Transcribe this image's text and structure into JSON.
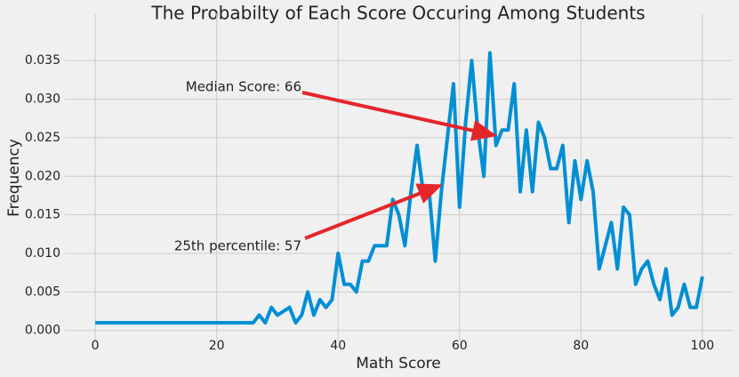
{
  "chart_data": {
    "type": "line",
    "title": "The Probabilty of Each Score Occuring Among Students",
    "x_label": "Math Score",
    "y_label": "Frequency",
    "annotations": [
      "Median Score: 66",
      "25th percentile: 57"
    ],
    "x": [
      0,
      1,
      2,
      3,
      4,
      5,
      6,
      7,
      8,
      9,
      10,
      11,
      12,
      13,
      14,
      15,
      16,
      17,
      18,
      19,
      20,
      21,
      22,
      23,
      24,
      25,
      26,
      27,
      28,
      29,
      30,
      31,
      32,
      33,
      34,
      35,
      36,
      37,
      38,
      39,
      40,
      41,
      42,
      43,
      44,
      45,
      46,
      47,
      48,
      49,
      50,
      51,
      52,
      53,
      54,
      55,
      56,
      57,
      58,
      59,
      60,
      61,
      62,
      63,
      64,
      65,
      66,
      67,
      68,
      69,
      70,
      71,
      72,
      73,
      74,
      75,
      76,
      77,
      78,
      79,
      80,
      81,
      82,
      83,
      84,
      85,
      86,
      87,
      88,
      89,
      90,
      91,
      92,
      93,
      94,
      95,
      96,
      97,
      98,
      99,
      100
    ],
    "series": [
      {
        "color": "#008fd5",
        "values": [
          0.001,
          0.001,
          0.001,
          0.001,
          0.001,
          0.001,
          0.001,
          0.001,
          0.001,
          0.001,
          0.001,
          0.001,
          0.001,
          0.001,
          0.001,
          0.001,
          0.001,
          0.001,
          0.001,
          0.001,
          0.001,
          0.001,
          0.001,
          0.001,
          0.001,
          0.001,
          0.001,
          0.002,
          0.001,
          0.003,
          0.002,
          0.0025,
          0.003,
          0.001,
          0.002,
          0.005,
          0.002,
          0.004,
          0.003,
          0.004,
          0.01,
          0.006,
          0.006,
          0.005,
          0.009,
          0.009,
          0.011,
          0.011,
          0.011,
          0.017,
          0.015,
          0.011,
          0.018,
          0.024,
          0.018,
          0.018,
          0.009,
          0.018,
          0.025,
          0.032,
          0.016,
          0.027,
          0.035,
          0.026,
          0.02,
          0.036,
          0.024,
          0.026,
          0.026,
          0.032,
          0.018,
          0.026,
          0.018,
          0.027,
          0.025,
          0.021,
          0.021,
          0.024,
          0.014,
          0.022,
          0.017,
          0.022,
          0.018,
          0.008,
          0.011,
          0.014,
          0.008,
          0.016,
          0.015,
          0.006,
          0.008,
          0.009,
          0.006,
          0.004,
          0.008,
          0.002,
          0.003,
          0.006,
          0.003,
          0.003,
          0.007
        ]
      }
    ],
    "xlim": [
      -5,
      105
    ],
    "xticks": [
      0,
      20,
      40,
      60,
      80,
      100
    ],
    "ylim": [
      -0.0013,
      0.0394
    ],
    "yticks": [
      {
        "value": 0,
        "label": "0.000"
      },
      {
        "value": 0.005,
        "label": "0.005"
      },
      {
        "value": 0.01,
        "label": "0.010"
      },
      {
        "value": 0.015,
        "label": "0.015"
      },
      {
        "value": 0.02,
        "label": "0.020"
      },
      {
        "value": 0.025,
        "label": "0.025"
      },
      {
        "value": 0.03,
        "label": "0.030"
      },
      {
        "value": 0.035,
        "label": "0.035"
      }
    ],
    "grid": true
  }
}
